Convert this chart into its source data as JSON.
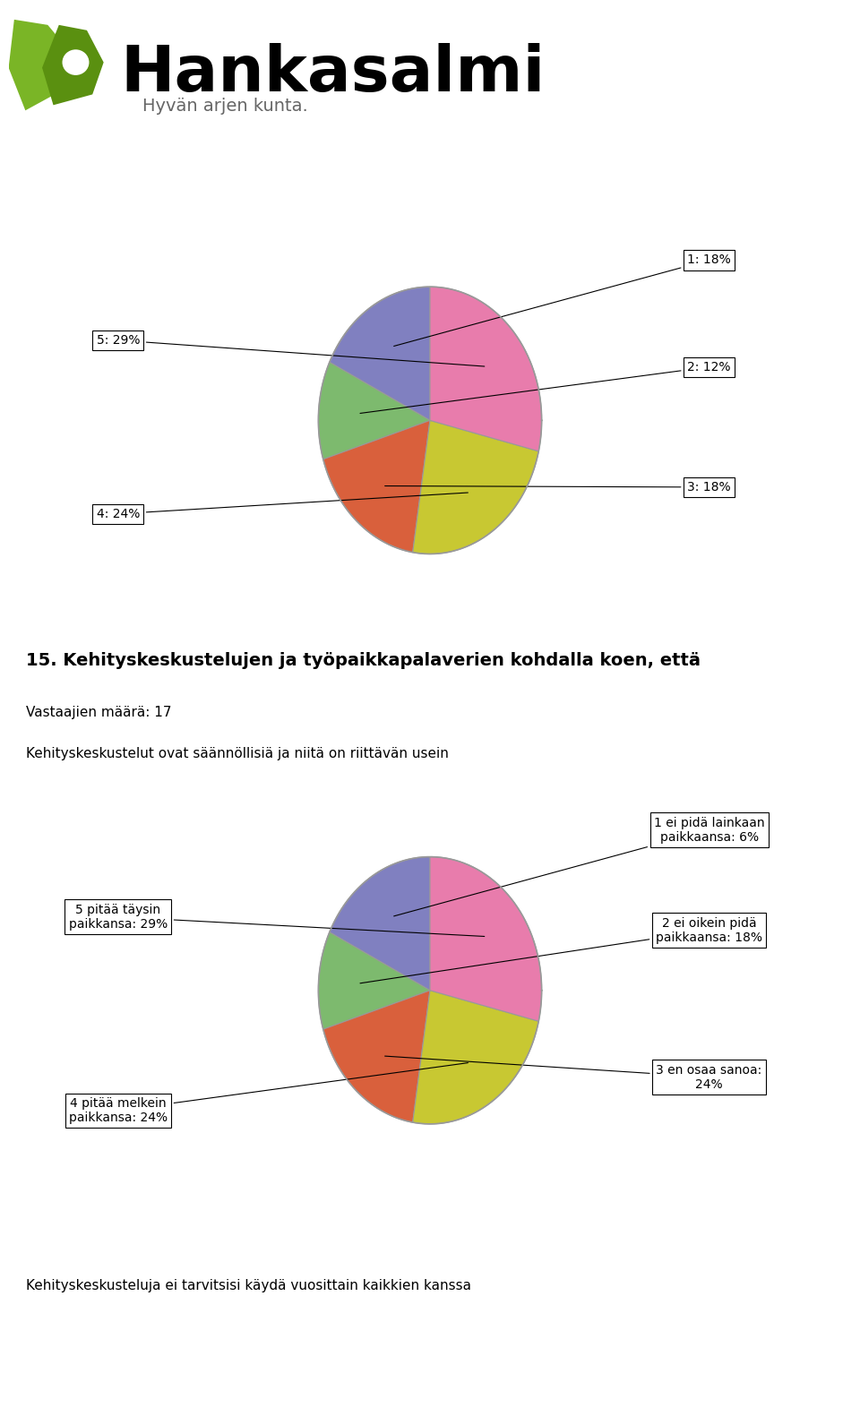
{
  "title_number": "15.",
  "title_main": "Kehityskeskustelujen ja työpaikkapalaverien kohdalla koen, että",
  "subtitle1": "Vastaajien määrä: 17",
  "subtitle2": "Kehityskeskustelut ovat säännöllisiä ja niitä on riittävän usein",
  "bottom_text": "Kehityskeskusteluja ei tarvitsisi käydä vuosittain kaikkien kanssa",
  "slices": [
    18,
    12,
    18,
    24,
    29
  ],
  "labels_top": [
    "1: 18%",
    "2: 12%",
    "3: 18%",
    "4: 24%",
    "5: 29%"
  ],
  "labels_bottom": [
    "1 ei pidä lainkaan\npaikkaansa: 6%",
    "2 ei oikein pidä\npaikkaansa: 18%",
    "3 en osaa sanoa:\n24%",
    "4 pitää melkein\npaikkansa: 24%",
    "5 pitää täysin\npaikkansa: 29%"
  ],
  "colors": [
    "#8080c0",
    "#7dba6e",
    "#d9603c",
    "#c8c832",
    "#e87cac"
  ],
  "background_color": "#ffffff",
  "header_text": "Hankasalmi",
  "header_sub": "Hyvän arjen kunta."
}
